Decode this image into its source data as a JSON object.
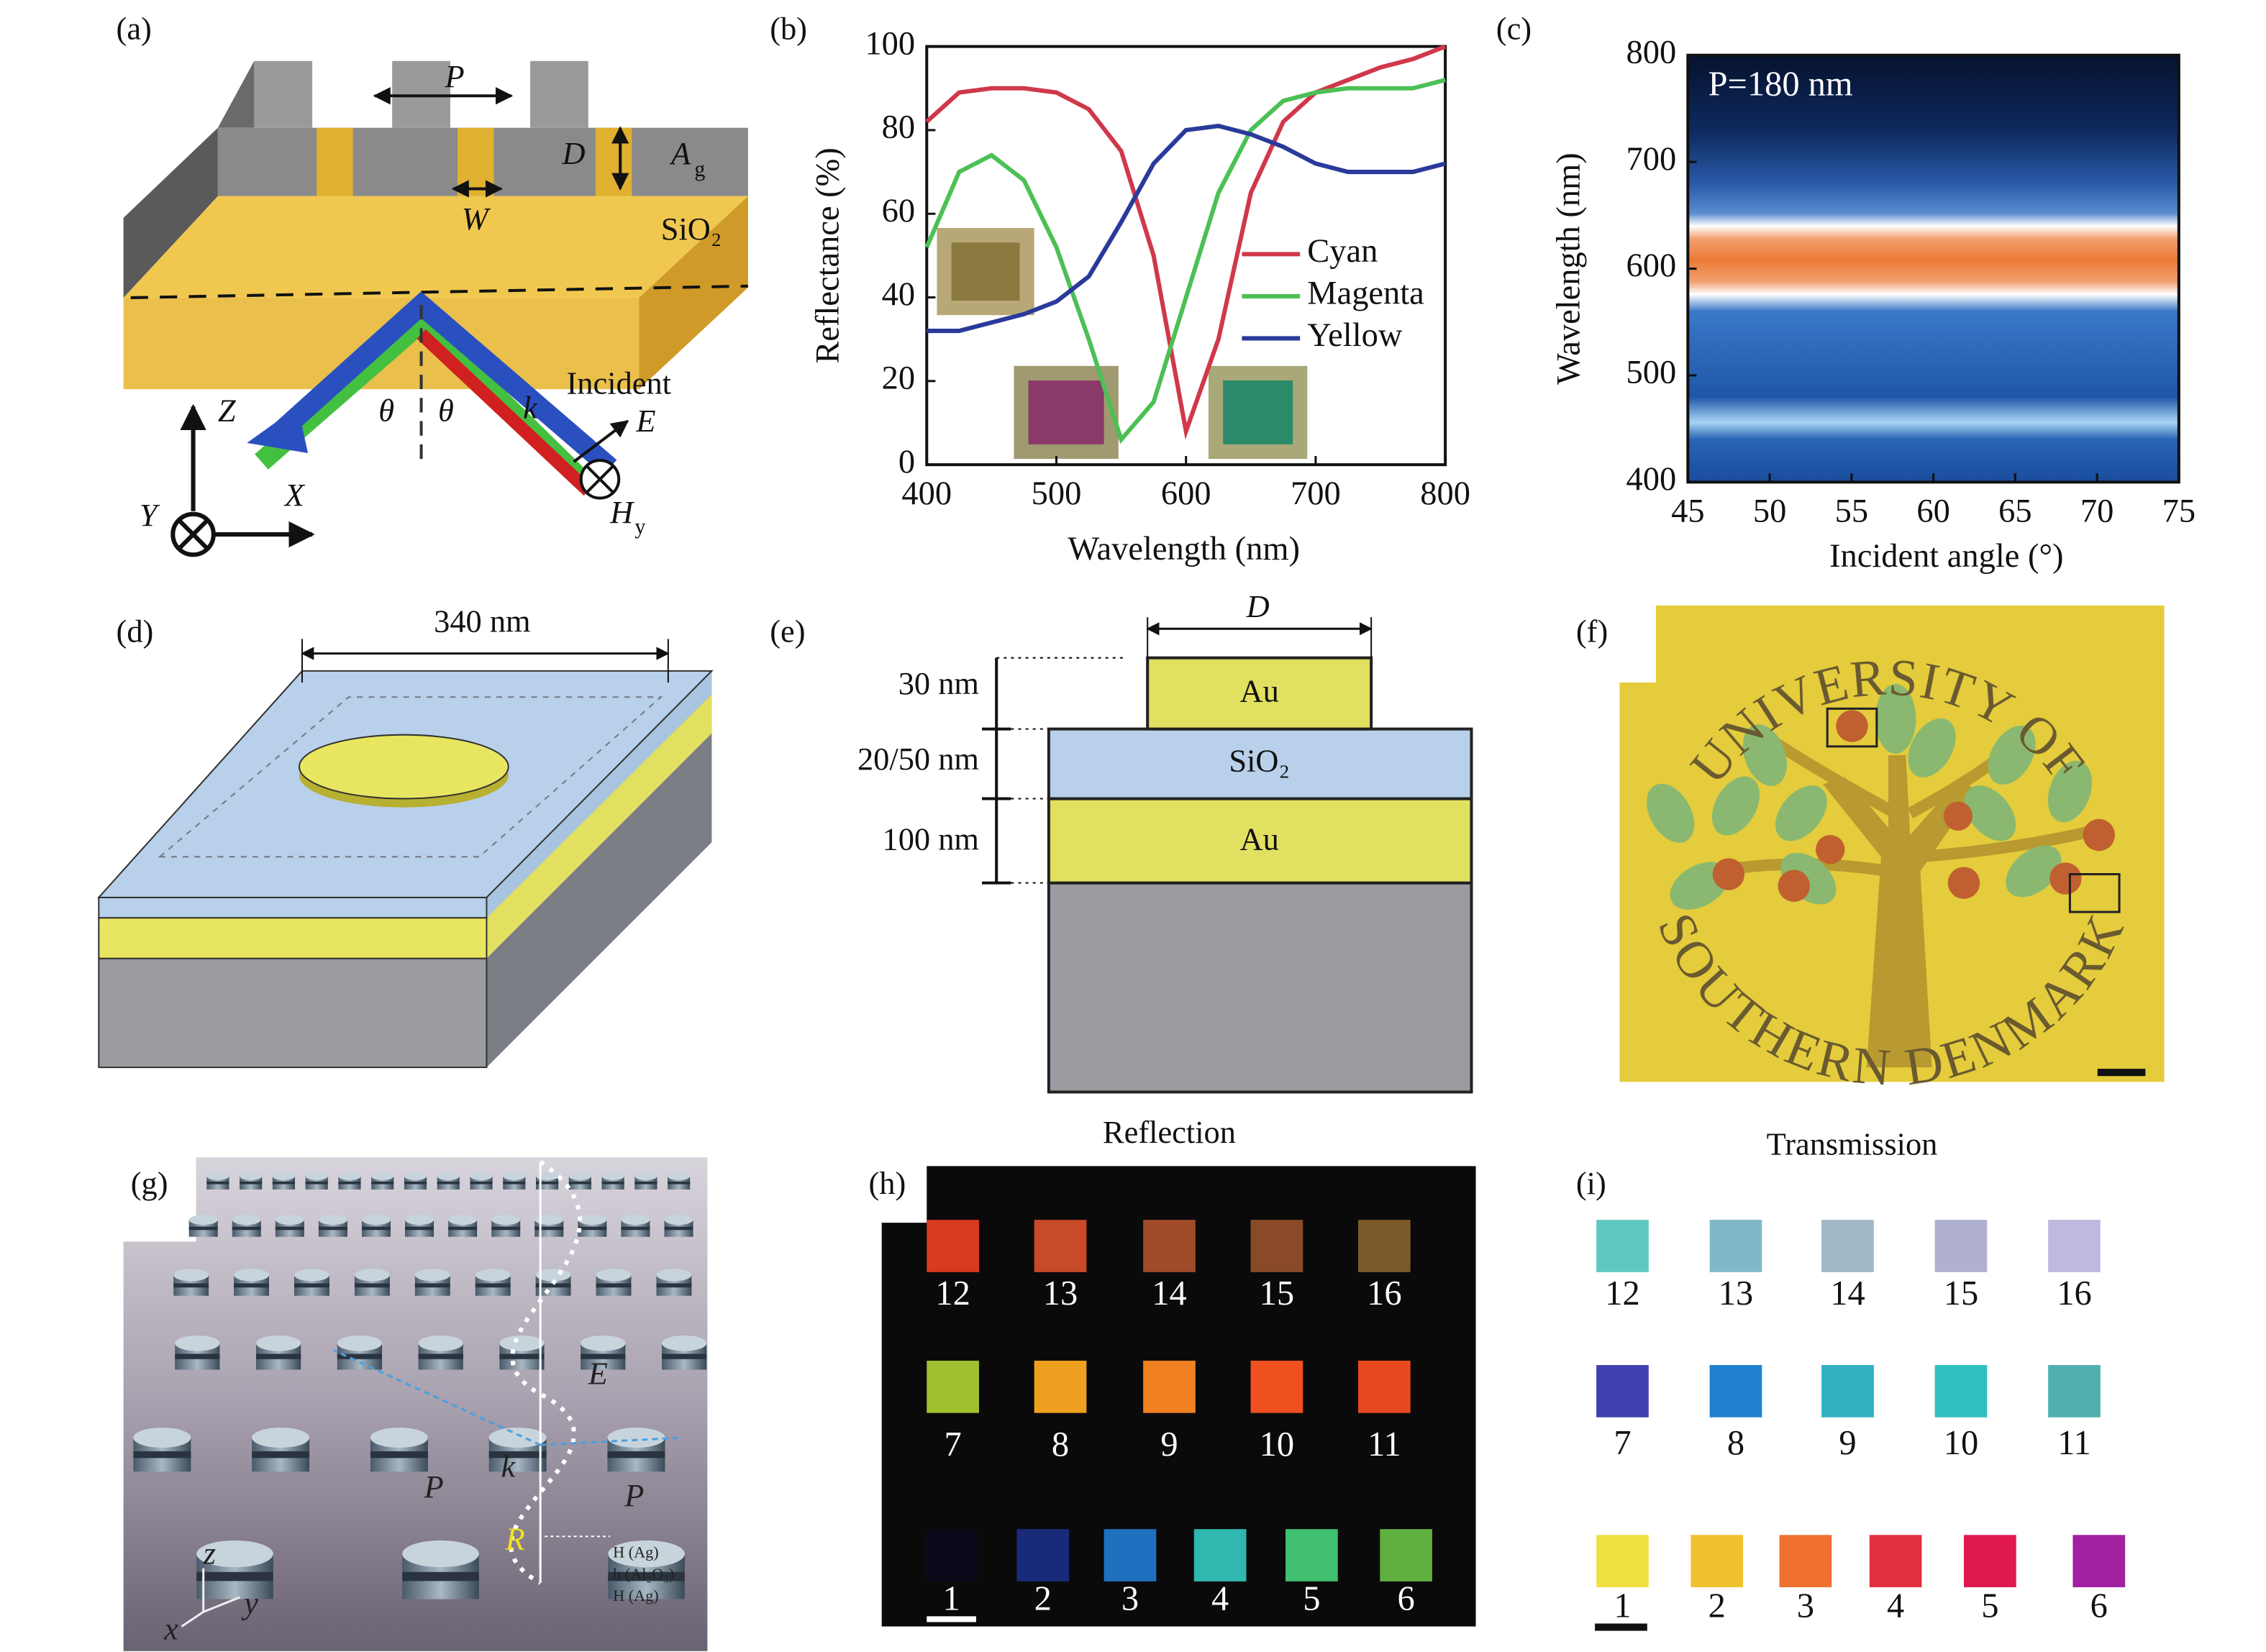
{
  "panel_labels": [
    "(a)",
    "(b)",
    "(c)",
    "(d)",
    "(e)",
    "(f)",
    "(g)",
    "(h)",
    "(i)"
  ],
  "panel_a": {
    "period": "P",
    "depth": "D",
    "metal": "A",
    "metal_sub": "g",
    "width": "W",
    "substrate": "SiO₂",
    "incident": "Incident",
    "z": "Z",
    "theta_left": "θ",
    "theta_right": "θ",
    "k": "k",
    "e": "E",
    "h": "H",
    "h_sub": "y",
    "x": "X",
    "y": "Y"
  },
  "chart_data": [
    {
      "type": "line",
      "xlabel": "Wavelength (nm)",
      "ylabel": "Reflectance (%)",
      "x": [
        400,
        425,
        450,
        475,
        500,
        525,
        550,
        575,
        600,
        625,
        650,
        675,
        700,
        725,
        750,
        775,
        800
      ],
      "xlim": [
        400,
        800
      ],
      "xticks": [
        400,
        500,
        600,
        700,
        800
      ],
      "ylim": [
        0,
        100
      ],
      "yticks": [
        0,
        20,
        40,
        60,
        80,
        100
      ],
      "series": [
        {
          "name": "Cyan",
          "color": "#d0384a",
          "values": [
            82,
            89,
            90,
            90,
            89,
            85,
            75,
            50,
            8,
            30,
            65,
            82,
            89,
            92,
            95,
            97,
            100
          ]
        },
        {
          "name": "Magenta",
          "color": "#4cc054",
          "values": [
            52,
            70,
            74,
            68,
            52,
            30,
            6,
            15,
            40,
            65,
            80,
            87,
            89,
            90,
            90,
            90,
            92
          ]
        },
        {
          "name": "Yellow",
          "color": "#2a3a9a",
          "values": [
            32,
            32,
            34,
            36,
            39,
            45,
            58,
            72,
            80,
            81,
            79,
            76,
            72,
            70,
            70,
            70,
            72
          ]
        }
      ],
      "legend": "right"
    },
    {
      "type": "heatmap",
      "annotation": "P=180 nm",
      "xlabel": "Incident angle (°)",
      "ylabel": "Wavelength (nm)",
      "xlim": [
        45,
        75
      ],
      "xticks": [
        45,
        50,
        55,
        60,
        65,
        70,
        75
      ],
      "ylim": [
        400,
        800
      ],
      "yticks": [
        400,
        500,
        600,
        700,
        800
      ]
    }
  ],
  "panel_d": {
    "width": "340 nm"
  },
  "panel_e": {
    "diameter": "D",
    "top": "Au",
    "middle": "SiO₂",
    "bottom": "Au",
    "t_top": "30 nm",
    "t_middle": "20/50 nm",
    "t_bottom": "100 nm"
  },
  "panel_f": {
    "arc_top": "UNIVERSITY OF",
    "arc_bottom": "SOUTHERN DENMARK"
  },
  "panel_g": {
    "e": "E",
    "k": "k",
    "p_left": "P",
    "p_right": "P",
    "r": "R",
    "layer_1": "H (Ag)",
    "layer_2": "h (Al₂O₃)",
    "layer_3": "H (Ag)",
    "z": "z",
    "x": "x",
    "y": "y"
  },
  "reflection": {
    "title": "Reflection",
    "labels": [
      "1",
      "2",
      "3",
      "4",
      "5",
      "6",
      "7",
      "8",
      "9",
      "10",
      "11",
      "12",
      "13",
      "14",
      "15",
      "16"
    ],
    "colors": [
      "#0a0a1a",
      "#1a2a7a",
      "#2070c0",
      "#30b8b0",
      "#40c070",
      "#60b040",
      "#a0c030",
      "#f0a020",
      "#f08020",
      "#f05020",
      "#e84a20",
      "#d83a20",
      "#c84a28",
      "#a04a28",
      "#8a4a28",
      "#7a5a28"
    ]
  },
  "transmission": {
    "title": "Transmission",
    "labels": [
      "1",
      "2",
      "3",
      "4",
      "5",
      "6",
      "7",
      "8",
      "9",
      "10",
      "11",
      "12",
      "13",
      "14",
      "15",
      "16"
    ],
    "colors": [
      "#f0e040",
      "#f0c030",
      "#f07030",
      "#e03040",
      "#e01850",
      "#a020a0",
      "#4040b0",
      "#2080d0",
      "#30b0c0",
      "#30c0c0",
      "#50b0b0",
      "#60c8c0",
      "#80b8c8",
      "#a0b8c8",
      "#b0b0d0",
      "#c0b8e0"
    ]
  }
}
